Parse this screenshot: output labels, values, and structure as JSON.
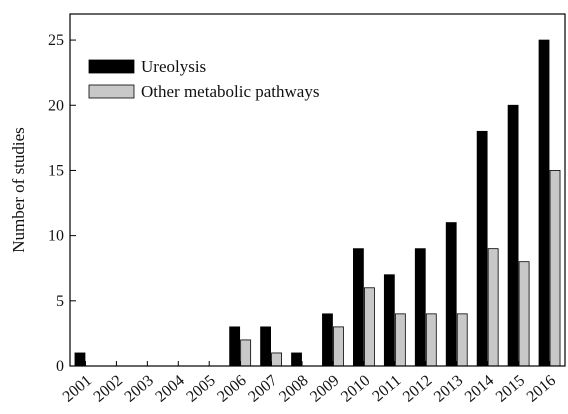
{
  "chart_data": {
    "type": "bar",
    "title": "",
    "xlabel": "",
    "ylabel": "Number of studies",
    "ylim": [
      0,
      27
    ],
    "yticks": [
      0,
      5,
      10,
      15,
      20,
      25
    ],
    "categories": [
      "2001",
      "2002",
      "2003",
      "2004",
      "2005",
      "2006",
      "2007",
      "2008",
      "2009",
      "2010",
      "2011",
      "2012",
      "2013",
      "2014",
      "2015",
      "2016"
    ],
    "series": [
      {
        "name": "Ureolysis",
        "color": "#000000",
        "values": [
          1,
          0,
          0,
          0,
          0,
          3,
          3,
          1,
          4,
          9,
          7,
          9,
          11,
          18,
          20,
          25
        ]
      },
      {
        "name": "Other metabolic pathways",
        "color": "#c8c8c8",
        "values": [
          0,
          0,
          0,
          0,
          0,
          2,
          1,
          0,
          3,
          6,
          4,
          4,
          4,
          9,
          8,
          15
        ]
      }
    ],
    "grid": false,
    "legend": "top-left",
    "x_tick_rotation": "45 degrees"
  }
}
